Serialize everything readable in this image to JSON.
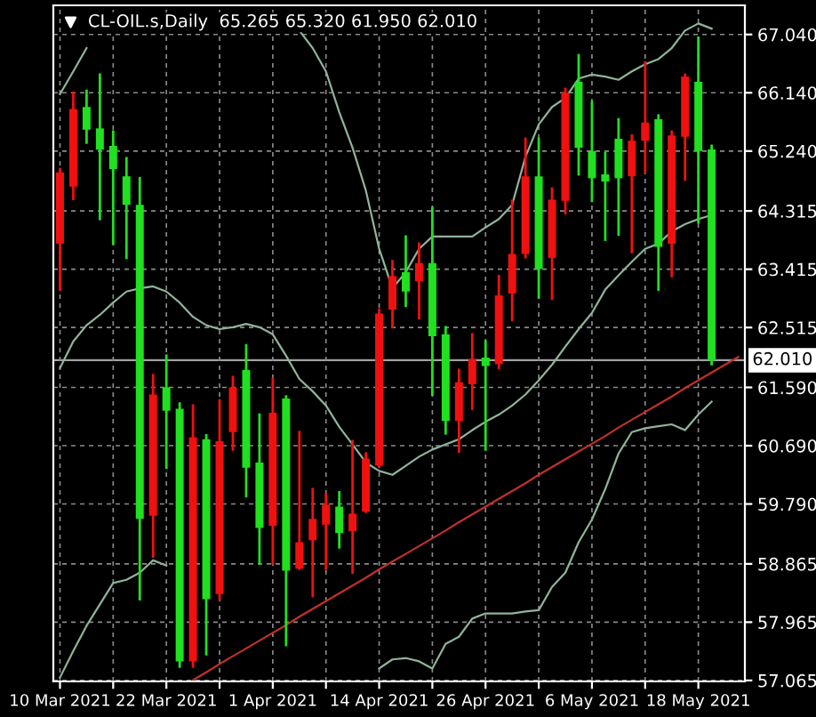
{
  "chart_data": {
    "type": "candlestick",
    "title": "CL-OIL.s,Daily  65.265 65.320 61.950 62.010",
    "categories": [
      "10 Mar 2021",
      null,
      null,
      null,
      null,
      null,
      null,
      null,
      "22 Mar 2021",
      null,
      null,
      null,
      null,
      null,
      null,
      null,
      "1 Apr 2021",
      null,
      null,
      null,
      null,
      null,
      null,
      null,
      "14 Apr 2021",
      null,
      null,
      null,
      null,
      null,
      null,
      null,
      "26 Apr 2021",
      null,
      null,
      null,
      null,
      null,
      null,
      null,
      "6 May 2021",
      null,
      null,
      null,
      null,
      null,
      null,
      null,
      "18 May 2021",
      null,
      null,
      null
    ],
    "ohlc": [
      [
        63.81,
        64.96,
        63.1,
        64.91
      ],
      [
        64.69,
        66.14,
        64.5,
        65.89
      ],
      [
        65.92,
        66.17,
        65.37,
        65.57
      ],
      [
        65.59,
        66.42,
        64.19,
        65.26
      ],
      [
        65.32,
        65.54,
        63.81,
        64.96
      ],
      [
        64.85,
        65.13,
        63.59,
        64.41
      ],
      [
        64.41,
        64.82,
        58.32,
        59.56
      ],
      [
        59.61,
        61.78,
        58.98,
        61.48
      ],
      [
        61.59,
        62.08,
        60.35,
        61.23
      ],
      [
        61.26,
        61.34,
        57.28,
        57.36
      ],
      [
        57.36,
        61.31,
        57.28,
        60.82
      ],
      [
        60.79,
        60.85,
        57.47,
        58.32
      ],
      [
        58.4,
        61.39,
        58.32,
        60.76
      ],
      [
        60.9,
        61.75,
        60.63,
        61.59
      ],
      [
        61.86,
        62.24,
        59.91,
        60.35
      ],
      [
        60.43,
        61.17,
        58.87,
        59.42
      ],
      [
        59.45,
        61.72,
        58.87,
        61.2
      ],
      [
        61.42,
        61.45,
        57.61,
        58.76
      ],
      [
        58.79,
        60.9,
        58.79,
        59.2
      ],
      [
        59.23,
        60.02,
        58.37,
        59.56
      ],
      [
        59.47,
        59.94,
        58.79,
        59.78
      ],
      [
        59.75,
        59.97,
        59.12,
        59.34
      ],
      [
        59.37,
        60.76,
        58.73,
        59.64
      ],
      [
        59.67,
        60.57,
        59.67,
        60.49
      ],
      [
        60.38,
        62.79,
        60.38,
        62.73
      ],
      [
        62.79,
        63.54,
        62.52,
        63.31
      ],
      [
        63.37,
        63.92,
        62.85,
        63.07
      ],
      [
        63.23,
        63.81,
        62.66,
        63.51
      ],
      [
        63.51,
        64.36,
        61.48,
        62.38
      ],
      [
        62.41,
        62.52,
        60.88,
        61.07
      ],
      [
        61.07,
        61.86,
        60.6,
        61.67
      ],
      [
        61.64,
        62.41,
        61.26,
        62.03
      ],
      [
        62.05,
        62.3,
        60.63,
        61.92
      ],
      [
        61.95,
        63.31,
        61.89,
        63.01
      ],
      [
        63.04,
        64.47,
        62.63,
        63.65
      ],
      [
        63.65,
        65.43,
        63.6,
        64.85
      ],
      [
        64.85,
        65.43,
        62.98,
        63.42
      ],
      [
        63.59,
        64.66,
        62.96,
        64.49
      ],
      [
        64.47,
        66.2,
        64.28,
        66.14
      ],
      [
        66.31,
        66.72,
        64.88,
        65.29
      ],
      [
        65.24,
        66.0,
        64.47,
        64.82
      ],
      [
        64.88,
        65.21,
        63.87,
        64.77
      ],
      [
        65.43,
        65.73,
        63.95,
        64.82
      ],
      [
        64.85,
        65.48,
        63.68,
        65.4
      ],
      [
        65.4,
        66.61,
        64.91,
        65.68
      ],
      [
        65.73,
        65.79,
        63.1,
        63.76
      ],
      [
        63.81,
        65.54,
        63.31,
        65.48
      ],
      [
        65.46,
        66.42,
        64.8,
        66.39
      ],
      [
        66.31,
        66.99,
        64.14,
        65.24
      ],
      [
        65.265,
        65.32,
        61.95,
        62.01
      ],
      null,
      null
    ],
    "colors": [
      "#f01010",
      "#f01010",
      "#20e020",
      "#20e020",
      "#20e020",
      "#20e020",
      "#20e020",
      "#f01010",
      "#20e020",
      "#20e020",
      "#f01010",
      "#20e020",
      "#f01010",
      "#f01010",
      "#20e020",
      "#20e020",
      "#f01010",
      "#20e020",
      "#f01010",
      "#f01010",
      "#f01010",
      "#20e020",
      "#f01010",
      "#f01010",
      "#f01010",
      "#f01010",
      "#20e020",
      "#f01010",
      "#20e020",
      "#20e020",
      "#f01010",
      "#f01010",
      "#20e020",
      "#f01010",
      "#f01010",
      "#f01010",
      "#20e020",
      "#f01010",
      "#f01010",
      "#20e020",
      "#20e020",
      "#20e020",
      "#20e020",
      "#f01010",
      "#f01010",
      "#20e020",
      "#f01010",
      "#f01010",
      "#20e020",
      "#20e020",
      null,
      null
    ],
    "series": [
      {
        "type": "line",
        "color": "#8fb39a",
        "values": [
          66.12,
          66.47,
          66.83,
          null,
          null,
          null,
          null,
          null,
          null,
          null,
          null,
          null,
          null,
          null,
          null,
          null,
          null,
          67.35,
          67.1,
          66.83,
          66.47,
          65.84,
          65.29,
          64.63,
          63.73,
          63.12,
          63.37,
          63.73,
          63.92,
          63.92,
          63.92,
          63.92,
          64.06,
          64.19,
          64.41,
          65.15,
          65.65,
          65.92,
          66.06,
          66.36,
          66.42,
          66.39,
          66.34,
          66.47,
          66.58,
          66.66,
          66.83,
          67.1,
          67.21,
          67.13,
          null,
          null
        ]
      },
      {
        "type": "line",
        "color": "#8fb39a",
        "values": [
          61.89,
          62.3,
          62.55,
          62.71,
          62.9,
          63.07,
          63.12,
          63.15,
          63.07,
          62.9,
          62.68,
          62.55,
          62.49,
          62.52,
          62.57,
          62.52,
          62.41,
          62.08,
          61.72,
          61.53,
          61.31,
          60.98,
          60.71,
          60.43,
          60.3,
          60.24,
          60.38,
          60.52,
          60.63,
          60.71,
          60.79,
          60.93,
          61.06,
          61.17,
          61.31,
          61.48,
          61.7,
          61.94,
          62.22,
          62.49,
          62.74,
          63.1,
          63.32,
          63.53,
          63.73,
          63.81,
          64.0,
          64.11,
          64.19,
          64.25,
          null,
          null
        ]
      },
      {
        "type": "line",
        "color": "#8fb39a",
        "values": [
          57.11,
          57.52,
          57.91,
          58.24,
          58.57,
          58.62,
          58.73,
          58.92,
          58.84,
          null,
          null,
          null,
          null,
          null,
          null,
          null,
          null,
          null,
          null,
          null,
          null,
          null,
          null,
          null,
          57.25,
          57.39,
          57.41,
          57.36,
          57.25,
          57.63,
          57.74,
          58.02,
          58.1,
          58.1,
          58.1,
          58.13,
          58.15,
          58.51,
          58.73,
          59.2,
          59.55,
          60.02,
          60.57,
          60.9,
          60.96,
          60.99,
          61.02,
          60.93,
          61.17,
          61.37,
          null,
          null
        ]
      },
      {
        "type": "line",
        "color": "#c0302c",
        "values": [
          null,
          null,
          null,
          null,
          null,
          null,
          null,
          null,
          null,
          null,
          57.07,
          57.19,
          57.32,
          57.44,
          57.56,
          57.68,
          57.8,
          57.92,
          58.05,
          58.17,
          58.29,
          58.41,
          58.53,
          58.65,
          58.78,
          58.9,
          59.02,
          59.14,
          59.26,
          59.38,
          59.51,
          59.63,
          59.75,
          59.87,
          59.99,
          60.11,
          60.24,
          60.36,
          60.48,
          60.6,
          60.72,
          60.84,
          60.97,
          61.09,
          61.21,
          61.33,
          61.45,
          61.58,
          61.7,
          61.82,
          61.94,
          62.06
        ]
      }
    ],
    "ylim": [
      57.05,
      67.49
    ],
    "yticks": [
      {
        "value": 57.065,
        "label": "57.065"
      },
      {
        "value": 57.965,
        "label": "57.965"
      },
      {
        "value": 58.865,
        "label": "58.865"
      },
      {
        "value": 59.79,
        "label": "59.790"
      },
      {
        "value": 60.69,
        "label": "60.690"
      },
      {
        "value": 61.59,
        "label": "61.590"
      },
      {
        "value": 62.515,
        "label": "62.515"
      },
      {
        "value": 63.415,
        "label": "63.415"
      },
      {
        "value": 64.315,
        "label": "64.315"
      },
      {
        "value": 65.24,
        "label": "65.240"
      },
      {
        "value": 66.14,
        "label": "66.140"
      },
      {
        "value": 67.04,
        "label": "67.040"
      }
    ],
    "ref_lines": [
      {
        "axis": "y",
        "value": 62.01,
        "label": "62.010",
        "color": "#a0a0a0"
      }
    ],
    "grid": true
  }
}
